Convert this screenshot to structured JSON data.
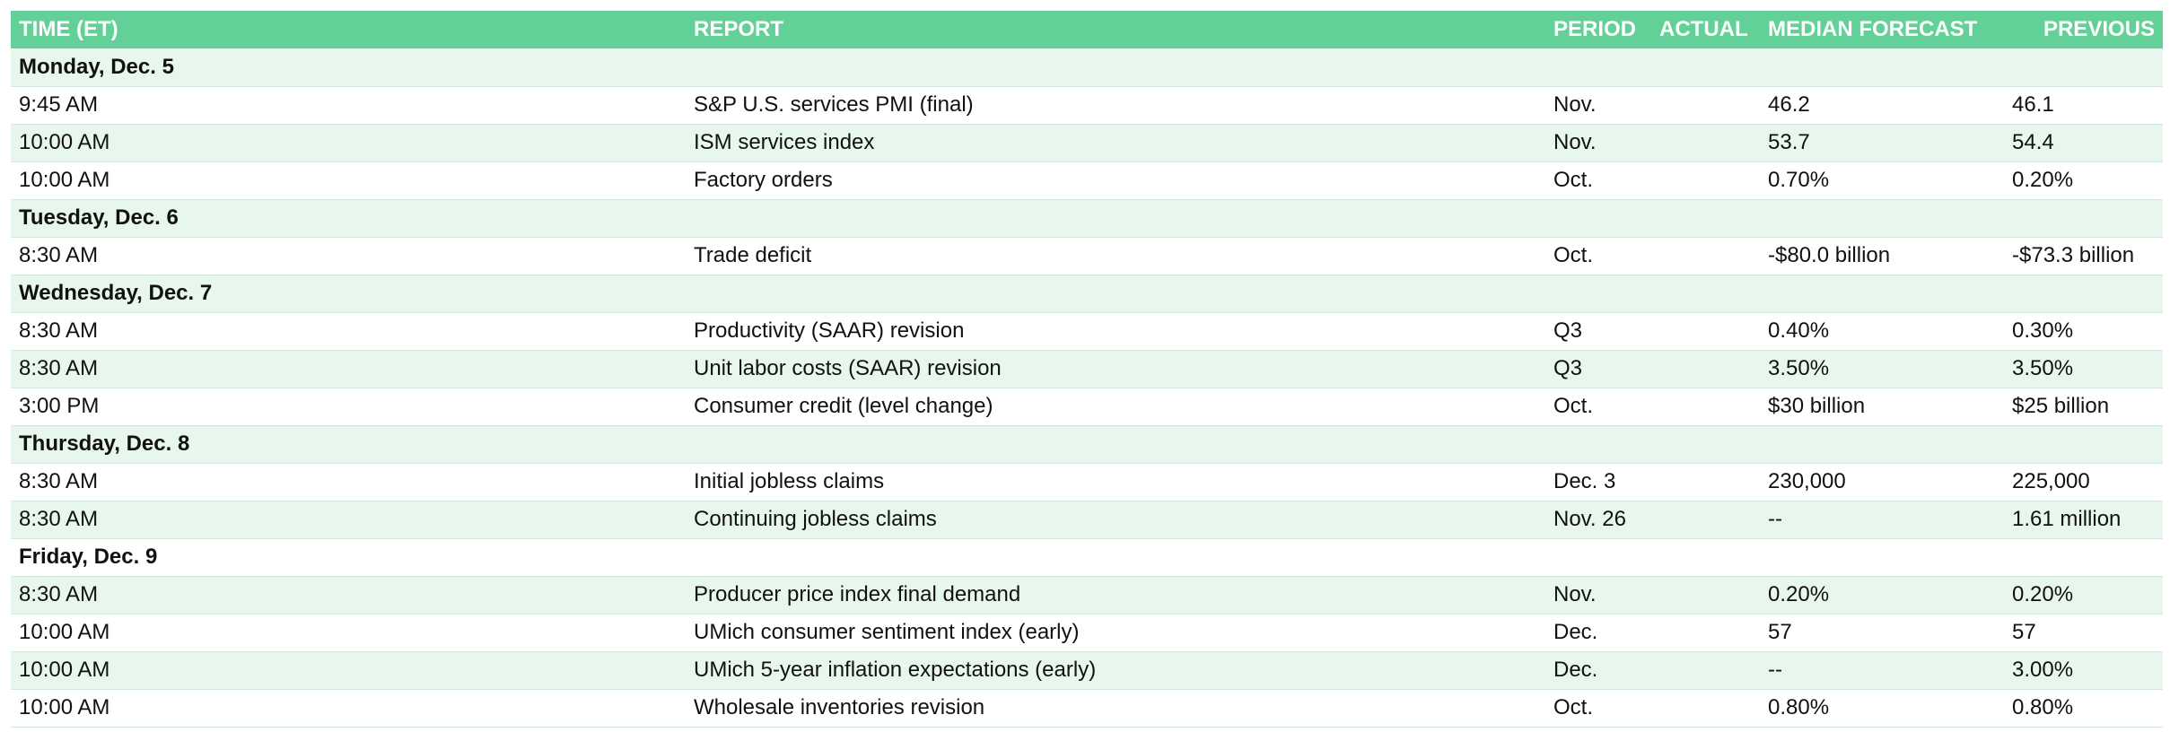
{
  "headers": {
    "time": "TIME (ET)",
    "report": "REPORT",
    "period": "PERIOD",
    "actual": "ACTUAL",
    "forecast": "MEDIAN FORECAST",
    "previous": "PREVIOUS"
  },
  "rows": [
    {
      "type": "day",
      "label": "Monday, Dec. 5"
    },
    {
      "type": "event",
      "time": "9:45 AM",
      "report": "S&P U.S. services PMI (final)",
      "period": "Nov.",
      "actual": "",
      "forecast": "46.2",
      "previous": "46.1"
    },
    {
      "type": "event",
      "time": "10:00 AM",
      "report": "ISM services index",
      "period": "Nov.",
      "actual": "",
      "forecast": "53.7",
      "previous": "54.4"
    },
    {
      "type": "event",
      "time": "10:00 AM",
      "report": "Factory orders",
      "period": "Oct.",
      "actual": "",
      "forecast": "0.70%",
      "previous": "0.20%"
    },
    {
      "type": "day",
      "label": "Tuesday, Dec. 6"
    },
    {
      "type": "event",
      "time": "8:30 AM",
      "report": "Trade deficit",
      "period": "Oct.",
      "actual": "",
      "forecast": "-$80.0 billion",
      "previous": "-$73.3 billion"
    },
    {
      "type": "day",
      "label": "Wednesday, Dec. 7"
    },
    {
      "type": "event",
      "time": "8:30 AM",
      "report": "Productivity (SAAR) revision",
      "period": "Q3",
      "actual": "",
      "forecast": "0.40%",
      "previous": "0.30%"
    },
    {
      "type": "event",
      "time": "8:30 AM",
      "report": "Unit labor costs (SAAR) revision",
      "period": "Q3",
      "actual": "",
      "forecast": "3.50%",
      "previous": "3.50%"
    },
    {
      "type": "event",
      "time": "3:00 PM",
      "report": "Consumer credit (level change)",
      "period": "Oct.",
      "actual": "",
      "forecast": "$30 billion",
      "previous": "$25 billion"
    },
    {
      "type": "day",
      "label": "Thursday, Dec. 8"
    },
    {
      "type": "event",
      "time": "8:30 AM",
      "report": "Initial jobless claims",
      "period": "Dec. 3",
      "actual": "",
      "forecast": "230,000",
      "previous": "225,000"
    },
    {
      "type": "event",
      "time": "8:30 AM",
      "report": "Continuing jobless claims",
      "period": "Nov. 26",
      "actual": "",
      "forecast": "--",
      "previous": "1.61 million"
    },
    {
      "type": "day",
      "label": "Friday, Dec. 9"
    },
    {
      "type": "event",
      "time": "8:30 AM",
      "report": "Producer price index final demand",
      "period": "Nov.",
      "actual": "",
      "forecast": "0.20%",
      "previous": "0.20%"
    },
    {
      "type": "event",
      "time": "10:00 AM",
      "report": "UMich consumer sentiment index (early)",
      "period": "Dec.",
      "actual": "",
      "forecast": "57",
      "previous": "57"
    },
    {
      "type": "event",
      "time": "10:00 AM",
      "report": "UMich 5-year inflation expectations (early)",
      "period": "Dec.",
      "actual": "",
      "forecast": "--",
      "previous": "3.00%"
    },
    {
      "type": "event",
      "time": "10:00 AM",
      "report": "Wholesale inventories revision",
      "period": "Oct.",
      "actual": "",
      "forecast": "0.80%",
      "previous": "0.80%"
    }
  ]
}
